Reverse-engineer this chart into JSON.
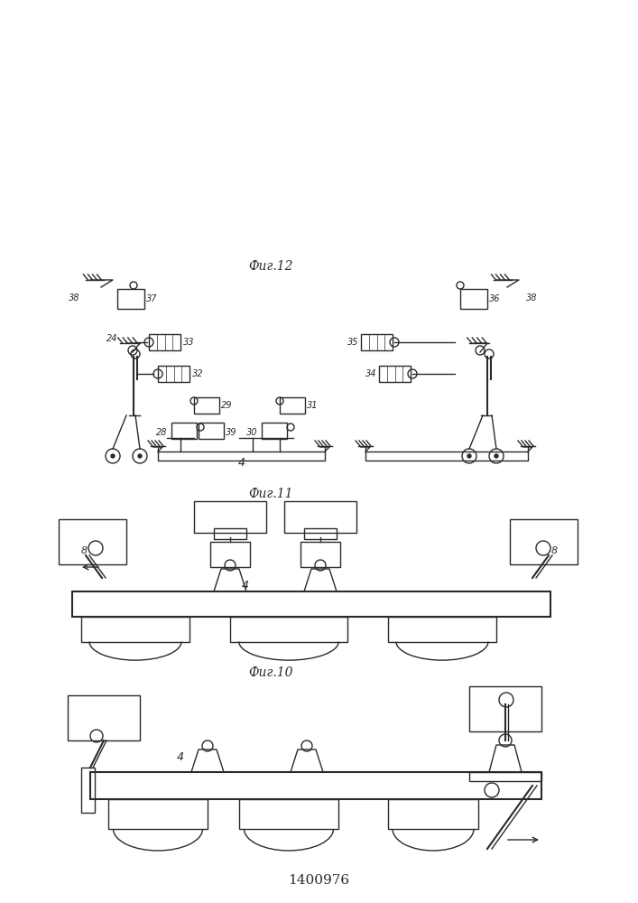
{
  "title": "1400976",
  "fig10_label": "Фиг.10",
  "fig11_label": "Фиг.11",
  "fig12_label": "Фиг.12",
  "bg_color": "#ffffff",
  "line_color": "#2a2a2a",
  "label_4_fig10": "4",
  "label_4_fig11": "4",
  "label_8_left": "8",
  "label_8_right": "8",
  "label_4_fig12": "4",
  "fig12_labels": [
    "24",
    "28",
    "29",
    "30",
    "31",
    "32",
    "33",
    "34",
    "35",
    "36",
    "37",
    "38",
    "39"
  ]
}
